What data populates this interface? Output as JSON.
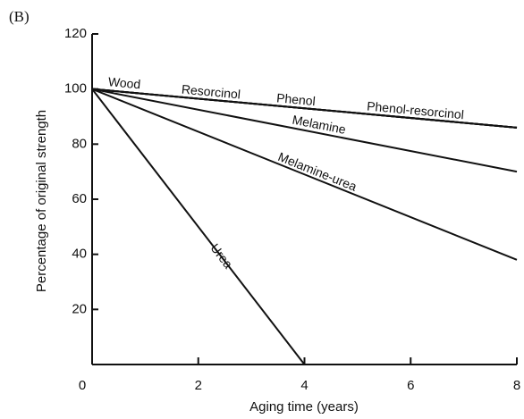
{
  "chart_data": {
    "type": "line",
    "panel_label": "(B)",
    "xlabel": "Aging time (years)",
    "ylabel": "Percentage of original strength",
    "x": [
      0,
      4,
      8
    ],
    "series": [
      {
        "name": "Wood",
        "color": "#111111",
        "values": [
          100,
          93,
          86
        ]
      },
      {
        "name": "Resorcinol",
        "color": "#111111",
        "values": [
          100,
          93,
          86
        ]
      },
      {
        "name": "Phenol",
        "color": "#111111",
        "values": [
          100,
          93,
          86
        ]
      },
      {
        "name": "Phenol-resorcinol",
        "color": "#111111",
        "values": [
          100,
          93,
          86
        ]
      },
      {
        "name": "Melamine",
        "color": "#111111",
        "values": [
          100,
          85,
          70
        ]
      },
      {
        "name": "Melamine-urea",
        "color": "#111111",
        "values": [
          100,
          69,
          38
        ]
      },
      {
        "name": "Urea",
        "color": "#111111",
        "values": [
          100,
          0,
          null
        ]
      }
    ],
    "xlim": [
      0,
      8
    ],
    "xticks": [
      0,
      2,
      4,
      6,
      8
    ],
    "ylim": [
      0,
      120
    ],
    "yticks": [
      20,
      40,
      60,
      80,
      100,
      120
    ],
    "grid": false
  }
}
